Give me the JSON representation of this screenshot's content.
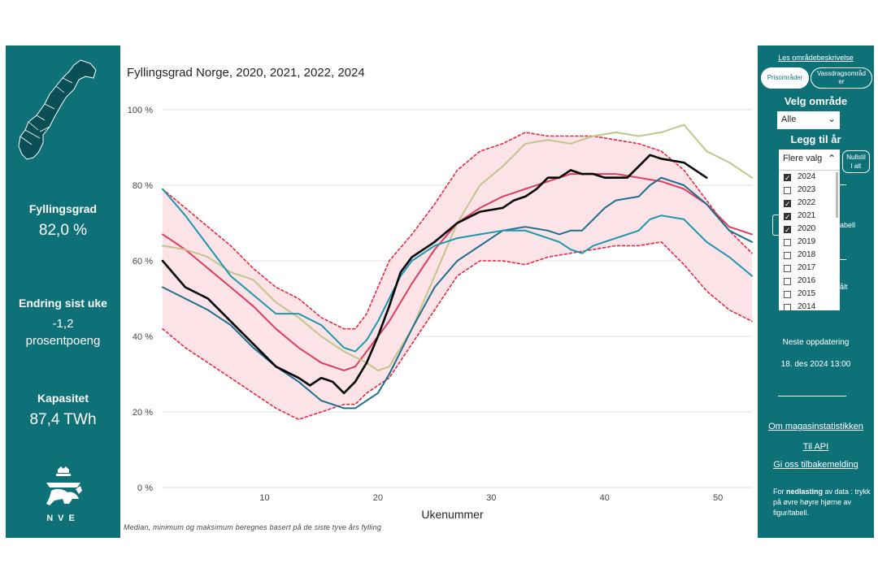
{
  "left": {
    "stats": [
      {
        "label": "Fyllingsgrad",
        "value": "82,0 %"
      },
      {
        "label": "Endring sist uke",
        "value_line1": "-1,2",
        "value_line2": "prosentpoeng"
      },
      {
        "label": "Kapasitet",
        "value": "87,4 TWh"
      }
    ],
    "logo_text": "NVE"
  },
  "chart_data": {
    "type": "line",
    "title": "Fyllingsgrad Norge, 2020, 2021, 2022, 2024",
    "xlabel": "Ukenummer",
    "ylabel": "",
    "xlim": [
      1,
      53
    ],
    "ylim": [
      0,
      100
    ],
    "x_ticks": [
      10,
      20,
      30,
      40,
      50
    ],
    "y_ticks": [
      0,
      20,
      40,
      60,
      80,
      100
    ],
    "y_tick_labels": [
      "0 %",
      "20 %",
      "40 %",
      "60 %",
      "80 %",
      "100 %"
    ],
    "footnote": "Median, minimum og maksimum beregnes basert på de siste tyve års fylling",
    "colors": {
      "band": "#fbe3e8",
      "minmax": "#e8263f",
      "median": "#de3c5c",
      "y2024": "#000000",
      "y2022": "#1b98ad",
      "y2021": "#1e6e8c",
      "y2020": "#c2c58b",
      "grid": "#dddddd"
    },
    "series": [
      {
        "name": "Maksimum",
        "style": "dashed",
        "color": "#e8263f",
        "x": [
          1,
          3,
          5,
          7,
          9,
          11,
          13,
          15,
          17,
          18,
          19,
          21,
          23,
          25,
          27,
          29,
          31,
          33,
          35,
          37,
          39,
          41,
          43,
          45,
          47,
          49,
          51,
          53
        ],
        "values": [
          79,
          74,
          69,
          64,
          58,
          53,
          50,
          45,
          42,
          42,
          46,
          60,
          67,
          75,
          84,
          89,
          91,
          94,
          93,
          93,
          93,
          92,
          91,
          89,
          84,
          76,
          68,
          62
        ]
      },
      {
        "name": "Minimum",
        "style": "dashed",
        "color": "#e8263f",
        "x": [
          1,
          3,
          5,
          7,
          9,
          11,
          13,
          15,
          17,
          18,
          19,
          21,
          23,
          25,
          27,
          29,
          31,
          33,
          35,
          37,
          39,
          41,
          43,
          45,
          47,
          49,
          51,
          53
        ],
        "values": [
          42,
          37,
          33,
          29,
          25,
          21,
          18,
          20,
          22,
          22,
          25,
          29,
          38,
          47,
          56,
          60,
          60,
          59,
          61,
          62,
          63,
          64,
          64,
          65,
          59,
          52,
          47,
          44
        ]
      },
      {
        "name": "Median",
        "color": "#de3c5c",
        "x": [
          1,
          3,
          5,
          7,
          9,
          11,
          13,
          15,
          17,
          18,
          19,
          21,
          23,
          25,
          27,
          29,
          31,
          33,
          35,
          37,
          39,
          41,
          43,
          45,
          47,
          49,
          51,
          53
        ],
        "values": [
          67,
          63,
          58,
          53,
          48,
          42,
          37,
          33,
          31,
          32,
          36,
          44,
          54,
          63,
          70,
          74,
          77,
          79,
          81,
          83,
          83,
          83,
          82,
          81,
          79,
          75,
          69,
          67
        ]
      },
      {
        "name": "2024",
        "color": "#000000",
        "x": [
          1,
          3,
          5,
          7,
          9,
          11,
          13,
          14,
          15,
          16,
          17,
          18,
          19,
          20,
          21,
          22,
          23,
          25,
          27,
          29,
          31,
          32,
          33,
          34,
          35,
          36,
          37,
          38,
          39,
          40,
          41,
          42,
          43,
          44,
          45,
          47,
          48,
          49
        ],
        "values": [
          60,
          53,
          50,
          44,
          38,
          32,
          29,
          27,
          29,
          28,
          25,
          28,
          33,
          40,
          48,
          57,
          61,
          65,
          70,
          73,
          74,
          76,
          77,
          79,
          82,
          82,
          84,
          83,
          83,
          82,
          82,
          82,
          85,
          88,
          87,
          86,
          84,
          82
        ]
      },
      {
        "name": "2022",
        "color": "#1b98ad",
        "x": [
          1,
          3,
          5,
          7,
          9,
          11,
          13,
          15,
          17,
          18,
          19,
          20,
          21,
          22,
          23,
          25,
          27,
          29,
          31,
          33,
          35,
          36,
          37,
          38,
          39,
          41,
          43,
          44,
          45,
          47,
          49,
          51,
          53
        ],
        "values": [
          79,
          72,
          64,
          56,
          51,
          46,
          46,
          43,
          37,
          36,
          39,
          44,
          50,
          56,
          60,
          64,
          66,
          67,
          68,
          68,
          66,
          65,
          63,
          62,
          64,
          66,
          68,
          71,
          72,
          71,
          65,
          61,
          56
        ]
      },
      {
        "name": "2021",
        "color": "#1e6e8c",
        "x": [
          1,
          3,
          5,
          7,
          9,
          11,
          13,
          15,
          16,
          17,
          18,
          19,
          20,
          21,
          22,
          23,
          25,
          27,
          29,
          31,
          33,
          35,
          36,
          37,
          38,
          39,
          40,
          41,
          43,
          44,
          45,
          47,
          49,
          51,
          53
        ],
        "values": [
          53,
          50,
          47,
          43,
          37,
          32,
          28,
          23,
          22,
          21,
          21,
          23,
          25,
          30,
          36,
          42,
          53,
          60,
          64,
          68,
          69,
          68,
          67,
          68,
          68,
          71,
          74,
          76,
          77,
          80,
          82,
          80,
          75,
          68,
          65
        ]
      },
      {
        "name": "2020",
        "color": "#c2c58b",
        "x": [
          1,
          3,
          5,
          7,
          9,
          11,
          13,
          15,
          17,
          19,
          20,
          21,
          23,
          25,
          27,
          29,
          31,
          33,
          35,
          37,
          39,
          41,
          43,
          45,
          47,
          49,
          51,
          53
        ],
        "values": [
          64,
          63,
          61,
          57,
          55,
          49,
          45,
          40,
          36,
          33,
          31,
          32,
          42,
          56,
          70,
          80,
          85,
          91,
          92,
          91,
          93,
          94,
          93,
          94,
          96,
          89,
          86,
          82
        ]
      }
    ]
  },
  "right": {
    "top_link": "Les områdebeskrivelse",
    "tab_pris": "Prisområder",
    "tab_vass_1": "Vassdragsområd",
    "tab_vass_2": "er",
    "velg_omrade": "Velg område",
    "omrade_value": "Alle",
    "legg_til_ar": "Legg til år",
    "multiselect_header": "Flere valg",
    "years": [
      {
        "label": "2024",
        "checked": true
      },
      {
        "label": "2023",
        "checked": false
      },
      {
        "label": "2022",
        "checked": true
      },
      {
        "label": "2021",
        "checked": true
      },
      {
        "label": "2020",
        "checked": true
      },
      {
        "label": "2019",
        "checked": false
      },
      {
        "label": "2018",
        "checked": false
      },
      {
        "label": "2017",
        "checked": false
      },
      {
        "label": "2016",
        "checked": false
      },
      {
        "label": "2015",
        "checked": false
      },
      {
        "label": "2014",
        "checked": false
      }
    ],
    "reset_1": "Nullstil",
    "reset_2": "l alt",
    "ghost_1": "abell",
    "ghost_2": "ålt",
    "next_update_label": "Neste oppdatering",
    "next_update_value": "18. des 2024 13:00",
    "link_om": "Om magasinstatistikken",
    "link_api": "Til API",
    "link_feedback": "Gi oss tilbakemelding",
    "note_prefix": "For ",
    "note_bold": "nedlasting",
    "note_suffix": " av data : trykk på øvre høyre hjørne av figur/tabell."
  }
}
